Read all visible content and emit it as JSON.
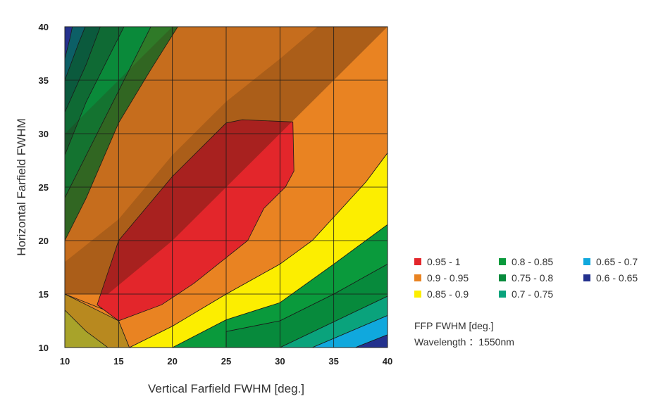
{
  "chart_data": {
    "type": "heatmap",
    "subtype": "filled-contour",
    "title": "",
    "xlabel": "Vertical Farfield FWHM [deg.]",
    "ylabel": "Horizontal Farfield FWHM",
    "xlim": [
      10,
      40
    ],
    "ylim": [
      10,
      40
    ],
    "xticks": [
      10,
      15,
      20,
      25,
      30,
      35,
      40
    ],
    "yticks": [
      10,
      15,
      20,
      25,
      30,
      35,
      40
    ],
    "grid": true,
    "legend_position": "right",
    "legend": [
      {
        "label": "0.95 - 1",
        "color": "#e3262b"
      },
      {
        "label": "0.9 - 0.95",
        "color": "#e98322"
      },
      {
        "label": "0.85 - 0.9",
        "color": "#fcee00"
      },
      {
        "label": "0.8 - 0.85",
        "color": "#0a9a3c"
      },
      {
        "label": "0.75 - 0.8",
        "color": "#078a3c"
      },
      {
        "label": "0.7 - 0.75",
        "color": "#0aa37c"
      },
      {
        "label": "0.65 - 0.7",
        "color": "#10a8dd"
      },
      {
        "label": "0.6 - 0.65",
        "color": "#23318e"
      }
    ],
    "notes": [
      "FFP FWHM [deg.]",
      "Wavelength ：1550nm"
    ],
    "regions": [
      {
        "range": "0.6 - 0.65",
        "color": "#23318e",
        "polygon": [
          [
            38,
            10
          ],
          [
            40,
            10
          ],
          [
            40,
            11.2
          ],
          [
            37,
            10
          ]
        ]
      },
      {
        "range": "0.65 - 0.7",
        "color": "#10a8dd",
        "polygon": [
          [
            33,
            10
          ],
          [
            37,
            10
          ],
          [
            40,
            11.2
          ],
          [
            40,
            13
          ]
        ]
      },
      {
        "range": "0.7 - 0.75",
        "color": "#0aa37c",
        "polygon": [
          [
            30,
            10
          ],
          [
            33,
            10
          ],
          [
            40,
            13
          ],
          [
            40,
            14.8
          ]
        ]
      },
      {
        "range": "0.75 - 0.8",
        "color": "#078a3c",
        "polygon": [
          [
            25,
            10
          ],
          [
            30,
            10
          ],
          [
            40,
            14.8
          ],
          [
            40,
            17.8
          ],
          [
            35,
            15
          ],
          [
            30,
            12.5
          ],
          [
            25,
            11.5
          ]
        ]
      },
      {
        "range": "0.8 - 0.85",
        "color": "#0a9a3c",
        "polygon": [
          [
            20,
            10
          ],
          [
            25,
            10
          ],
          [
            25,
            11.5
          ],
          [
            30,
            12.5
          ],
          [
            35,
            15
          ],
          [
            40,
            17.8
          ],
          [
            40,
            21.5
          ],
          [
            35,
            17.8
          ],
          [
            30,
            14.2
          ],
          [
            25,
            12.6
          ],
          [
            20,
            10
          ]
        ]
      },
      {
        "range": "0.85 - 0.9",
        "color": "#fcee00",
        "polygon": [
          [
            16,
            10
          ],
          [
            20,
            10
          ],
          [
            25,
            12.6
          ],
          [
            30,
            14.2
          ],
          [
            35,
            17.8
          ],
          [
            40,
            21.5
          ],
          [
            40,
            28.2
          ],
          [
            38,
            25.5
          ],
          [
            35,
            22.2
          ],
          [
            33,
            20
          ],
          [
            30,
            17.8
          ],
          [
            25,
            15
          ],
          [
            20,
            12
          ]
        ]
      },
      {
        "range": "0.9 - 0.95",
        "color": "#e98322",
        "polygon": [
          [
            15,
            12.5
          ],
          [
            16,
            10
          ],
          [
            20,
            12
          ],
          [
            25,
            15
          ],
          [
            30,
            17.8
          ],
          [
            33,
            20
          ],
          [
            35,
            22.2
          ],
          [
            38,
            25.5
          ],
          [
            40,
            28.2
          ],
          [
            40,
            40
          ],
          [
            20,
            40
          ],
          [
            15,
            35
          ],
          [
            10,
            30
          ],
          [
            10,
            15
          ],
          [
            15,
            13
          ]
        ]
      }
    ],
    "peak_region": {
      "range": "0.95 - 1",
      "color": "#e3262b",
      "polygon": [
        [
          15,
          12.5
        ],
        [
          13,
          14
        ],
        [
          15,
          20
        ],
        [
          20,
          26
        ],
        [
          25,
          31
        ],
        [
          26.5,
          31.3
        ],
        [
          31.2,
          31.1
        ],
        [
          31.3,
          26.5
        ],
        [
          30.5,
          25
        ],
        [
          28.5,
          23
        ],
        [
          27,
          20
        ],
        [
          22,
          16
        ],
        [
          19,
          14
        ]
      ]
    }
  }
}
